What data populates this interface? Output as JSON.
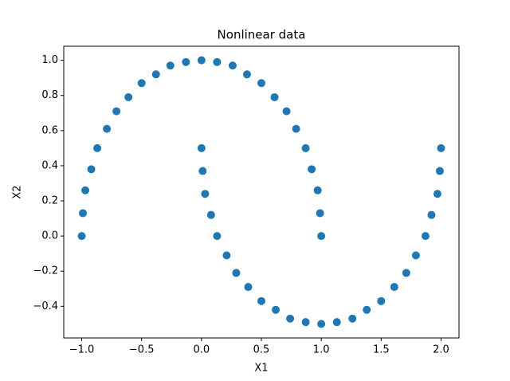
{
  "chart_data": {
    "type": "scatter",
    "title": "Nonlinear data",
    "xlabel": "X1",
    "ylabel": "X2",
    "xlim": [
      -1.15,
      2.15
    ],
    "ylim": [
      -0.58,
      1.08
    ],
    "xticks": [
      {
        "value": -1.0,
        "label": "−1.0"
      },
      {
        "value": -0.5,
        "label": "−0.5"
      },
      {
        "value": 0.0,
        "label": "0.0"
      },
      0.5,
      {
        "value": 1.0,
        "label": "1.0"
      },
      1.5,
      {
        "value": 2.0,
        "label": "2.0"
      }
    ],
    "yticks": [
      {
        "value": -0.4,
        "label": "−0.4"
      },
      {
        "value": -0.2,
        "label": "−0.2"
      },
      {
        "value": 0.0,
        "label": "0.0"
      },
      0.2,
      0.4,
      0.6,
      0.8,
      {
        "value": 1.0,
        "label": "1.0"
      }
    ],
    "grid": false,
    "series": [
      {
        "color": "#1f77b4",
        "x": [
          1,
          0.99,
          0.97,
          0.92,
          0.87,
          0.79,
          0.71,
          0.61,
          0.5,
          0.38,
          0.26,
          0.13,
          0,
          -0.13,
          -0.26,
          -0.38,
          -0.5,
          -0.61,
          -0.71,
          -0.79,
          -0.87,
          -0.92,
          -0.97,
          -0.99,
          -1
        ],
        "y": [
          0,
          0.13,
          0.26,
          0.38,
          0.5,
          0.61,
          0.71,
          0.79,
          0.87,
          0.92,
          0.97,
          0.99,
          1,
          0.99,
          0.97,
          0.92,
          0.87,
          0.79,
          0.71,
          0.61,
          0.5,
          0.38,
          0.26,
          0.13,
          0
        ]
      },
      {
        "color": "#1f77b4",
        "x": [
          0,
          0.01,
          0.03,
          0.08,
          0.13,
          0.21,
          0.29,
          0.39,
          0.5,
          0.62,
          0.74,
          0.87,
          1,
          1.13,
          1.26,
          1.38,
          1.5,
          1.61,
          1.71,
          1.79,
          1.87,
          1.92,
          1.97,
          1.99,
          2
        ],
        "y": [
          0.5,
          0.37,
          0.24,
          0.12,
          0,
          -0.11,
          -0.21,
          -0.29,
          -0.37,
          -0.42,
          -0.47,
          -0.49,
          -0.5,
          -0.49,
          -0.47,
          -0.42,
          -0.37,
          -0.29,
          -0.21,
          -0.11,
          0,
          0.12,
          0.24,
          0.37,
          0.5
        ]
      }
    ]
  }
}
